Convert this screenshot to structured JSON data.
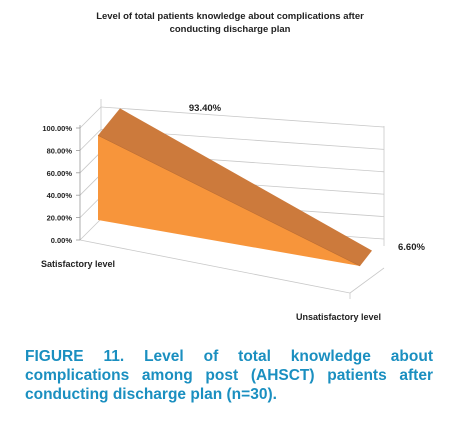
{
  "chart_data": {
    "type": "area",
    "title_line1": "Level of total patients knowledge about complications after",
    "title_line2": "conducting discharge plan",
    "categories": [
      "Satisfactory level",
      "Unsatisfactory level"
    ],
    "values": [
      93.4,
      6.6
    ],
    "data_labels": [
      "93.40%",
      "6.60%"
    ],
    "y_ticks": [
      "0.00%",
      "20.00%",
      "40.00%",
      "60.00%",
      "80.00%",
      "100.00%"
    ],
    "ylim": [
      0,
      100
    ],
    "grid": true,
    "three_d": true,
    "colors": {
      "front": "#f7953b",
      "top": "#cc7a3c",
      "side": "#e5853a",
      "grid": "#c8c8c8"
    }
  },
  "caption": {
    "text": "FIGURE 11. Level of total knowledge about complications among post (AHSCT) patients after conducting discharge plan (n=30)."
  }
}
